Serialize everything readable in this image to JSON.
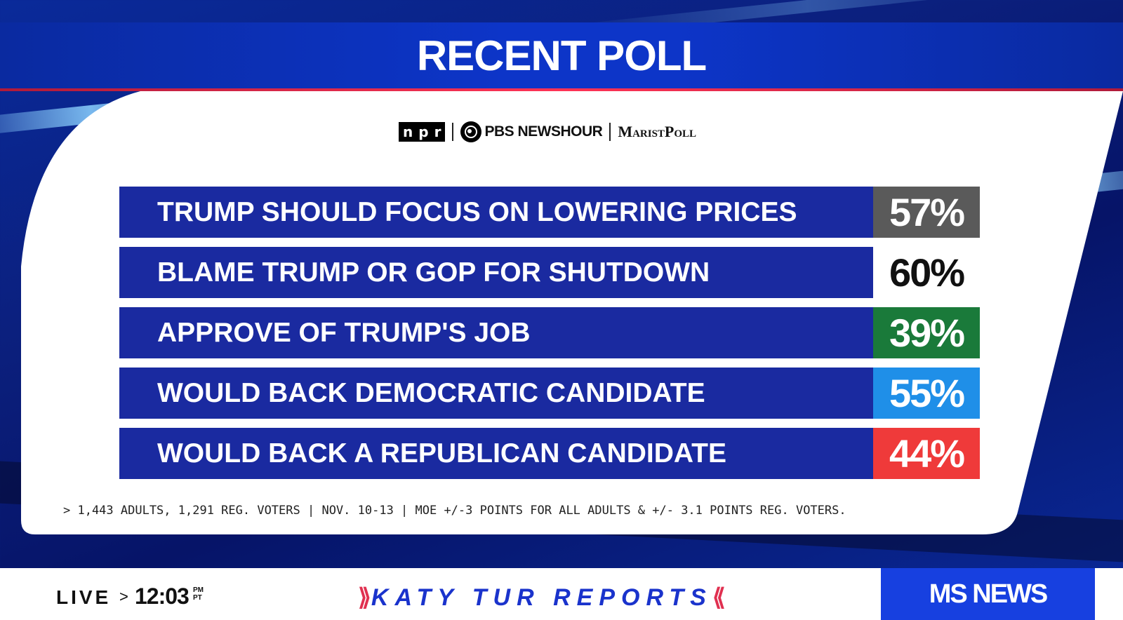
{
  "title": "RECENT POLL",
  "sponsors": {
    "npr_letters": [
      "n",
      "p",
      "r"
    ],
    "pbs": "PBS NEWSHOUR",
    "marist": "MaristPoll"
  },
  "rows": [
    {
      "label": "TRUMP SHOULD FOCUS ON LOWERING PRICES",
      "value": "57%",
      "color": "#5a5a5a",
      "text_color": "#ffffff"
    },
    {
      "label": "BLAME TRUMP OR GOP FOR SHUTDOWN",
      "value": "60%",
      "color": "#ffffff",
      "text_color": "#111111"
    },
    {
      "label": "APPROVE OF TRUMP'S JOB",
      "value": "39%",
      "color": "#1a7a3a",
      "text_color": "#ffffff"
    },
    {
      "label": "WOULD BACK DEMOCRATIC CANDIDATE",
      "value": "55%",
      "color": "#1f8fe8",
      "text_color": "#ffffff"
    },
    {
      "label": "WOULD BACK A REPUBLICAN CANDIDATE",
      "value": "44%",
      "color": "#ef3a3a",
      "text_color": "#ffffff"
    }
  ],
  "footnote": "> 1,443 ADULTS, 1,291 REG. VOTERS | NOV. 10-13 | MOE +/-3 POINTS FOR ALL ADULTS & +/- 3.1 POINTS REG. VOTERS.",
  "ticker": {
    "live": "LIVE",
    "arrow": ">",
    "time": "12:03",
    "ampm_top": "PM",
    "ampm_bottom": "PT",
    "show_left": "⟫",
    "show": "KATY TUR REPORTS",
    "show_right": "⟪",
    "brand": "MS NEWS"
  },
  "colors": {
    "bar_blue": "#1a2aa0",
    "show_blue": "#1a33cc",
    "brand_blue": "#1740e0",
    "accent_red": "#e03050"
  }
}
